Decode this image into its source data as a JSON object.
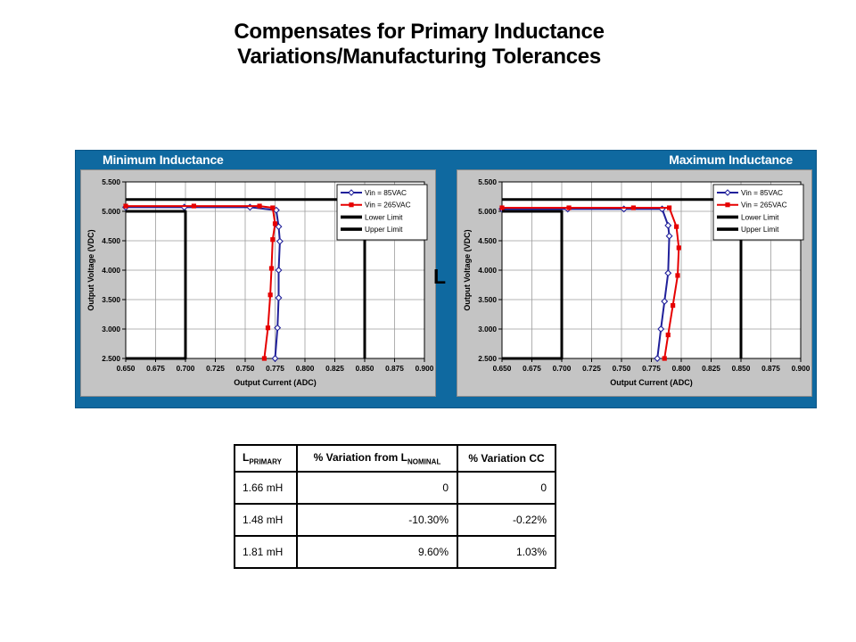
{
  "slide": {
    "title_lines": [
      "Compensates for Primary Inductance",
      "Variations/Manufacturing Tolerances"
    ]
  },
  "panel": {
    "left_chart_title": "Minimum Inductance",
    "right_chart_title": "Maximum Inductance",
    "stray_label": "L"
  },
  "colors": {
    "panel_blue": "#0F69A0",
    "chart_gray": "#C4C4C4",
    "series_navy": "#20209A",
    "series_red": "#E60000",
    "limit_black": "#000000",
    "gridline_gray": "#9C9C9C"
  },
  "chart_data": [
    {
      "type": "line",
      "title": "Minimum Inductance",
      "xlabel": "Output Current (ADC)",
      "ylabel": "Output Voltage (VDC)",
      "xlim": [
        0.65,
        0.9
      ],
      "ylim": [
        2.5,
        5.5
      ],
      "xticks": [
        "0.650",
        "0.675",
        "0.700",
        "0.725",
        "0.750",
        "0.775",
        "0.800",
        "0.825",
        "0.850",
        "0.875",
        "0.900"
      ],
      "yticks": [
        "5.500",
        "5.000",
        "4.500",
        "4.000",
        "3.500",
        "3.000",
        "2.500"
      ],
      "grid": true,
      "legend_position": "top-right",
      "series": [
        {
          "name": "Vin = 85VAC",
          "color": "#20209A",
          "marker": "diamond",
          "width": 2,
          "points": [
            [
              0.65,
              5.07
            ],
            [
              0.699,
              5.07
            ],
            [
              0.754,
              5.07
            ],
            [
              0.776,
              5.02
            ],
            [
              0.778,
              4.74
            ],
            [
              0.779,
              4.49
            ],
            [
              0.778,
              4.0
            ],
            [
              0.778,
              3.53
            ],
            [
              0.777,
              3.02
            ],
            [
              0.775,
              2.5
            ]
          ]
        },
        {
          "name": "Vin = 265VAC",
          "color": "#E60000",
          "marker": "square",
          "width": 2,
          "points": [
            [
              0.65,
              5.09
            ],
            [
              0.707,
              5.09
            ],
            [
              0.762,
              5.09
            ],
            [
              0.773,
              5.06
            ],
            [
              0.775,
              4.79
            ],
            [
              0.773,
              4.52
            ],
            [
              0.772,
              4.03
            ],
            [
              0.771,
              3.58
            ],
            [
              0.769,
              3.02
            ],
            [
              0.766,
              2.5
            ]
          ]
        },
        {
          "name": "Lower Limit",
          "color": "#000000",
          "marker": "none",
          "width": 3,
          "points": [
            [
              0.65,
              2.5
            ],
            [
              0.7,
              2.5
            ],
            [
              0.7,
              5.0
            ],
            [
              0.65,
              5.0
            ]
          ]
        },
        {
          "name": "Upper Limit",
          "color": "#000000",
          "marker": "none",
          "width": 3,
          "points": [
            [
              0.65,
              5.2
            ],
            [
              0.85,
              5.2
            ],
            [
              0.85,
              2.5
            ]
          ]
        }
      ]
    },
    {
      "type": "line",
      "title": "Maximum Inductance",
      "xlabel": "Output Current (ADC)",
      "ylabel": "Output Voltage (VDC)",
      "xlim": [
        0.65,
        0.9
      ],
      "ylim": [
        2.5,
        5.5
      ],
      "xticks": [
        "0.650",
        "0.675",
        "0.700",
        "0.725",
        "0.750",
        "0.775",
        "0.800",
        "0.825",
        "0.850",
        "0.875",
        "0.900"
      ],
      "yticks": [
        "5.500",
        "5.000",
        "4.500",
        "4.000",
        "3.500",
        "3.000",
        "2.500"
      ],
      "grid": true,
      "legend_position": "top-right",
      "series": [
        {
          "name": "Vin = 85VAC",
          "color": "#20209A",
          "marker": "diamond",
          "width": 2,
          "points": [
            [
              0.65,
              5.04
            ],
            [
              0.705,
              5.04
            ],
            [
              0.752,
              5.04
            ],
            [
              0.784,
              5.04
            ],
            [
              0.789,
              4.76
            ],
            [
              0.79,
              4.58
            ],
            [
              0.789,
              3.95
            ],
            [
              0.786,
              3.47
            ],
            [
              0.783,
              3.0
            ],
            [
              0.78,
              2.5
            ]
          ]
        },
        {
          "name": "Vin = 265VAC",
          "color": "#E60000",
          "marker": "square",
          "width": 2,
          "points": [
            [
              0.65,
              5.06
            ],
            [
              0.706,
              5.06
            ],
            [
              0.76,
              5.06
            ],
            [
              0.79,
              5.06
            ],
            [
              0.796,
              4.74
            ],
            [
              0.798,
              4.38
            ],
            [
              0.797,
              3.91
            ],
            [
              0.793,
              3.4
            ],
            [
              0.789,
              2.9
            ],
            [
              0.786,
              2.5
            ]
          ]
        },
        {
          "name": "Lower Limit",
          "color": "#000000",
          "marker": "none",
          "width": 3,
          "points": [
            [
              0.65,
              2.5
            ],
            [
              0.7,
              2.5
            ],
            [
              0.7,
              5.0
            ],
            [
              0.65,
              5.0
            ]
          ]
        },
        {
          "name": "Upper Limit",
          "color": "#000000",
          "marker": "none",
          "width": 3,
          "points": [
            [
              0.65,
              5.2
            ],
            [
              0.85,
              5.2
            ],
            [
              0.85,
              2.5
            ]
          ]
        }
      ]
    }
  ],
  "table": {
    "headers": [
      {
        "main": "L",
        "sub": "PRIMARY"
      },
      {
        "main": "% Variation from L",
        "sub": "NOMINAL"
      },
      {
        "main": "% Variation CC",
        "sub": ""
      }
    ],
    "rows": [
      {
        "l": "1.66 mH",
        "var_l": "0",
        "var_cc": "0"
      },
      {
        "l": "1.48 mH",
        "var_l": "-10.30%",
        "var_cc": "-0.22%"
      },
      {
        "l": "1.81 mH",
        "var_l": "9.60%",
        "var_cc": "1.03%"
      }
    ]
  }
}
